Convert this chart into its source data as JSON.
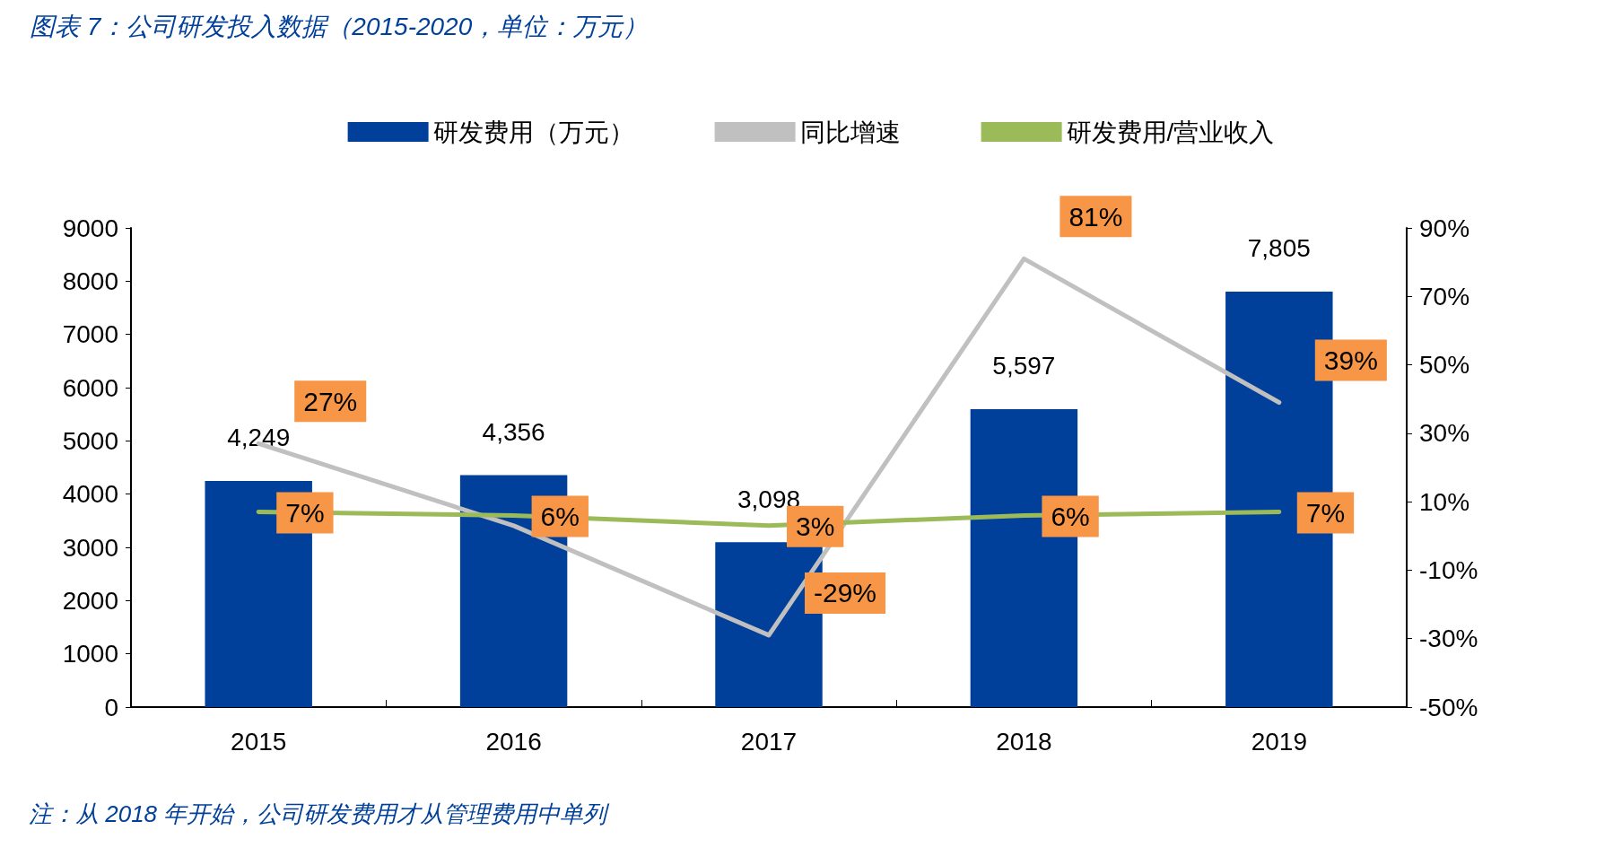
{
  "chart_data": {
    "type": "bar",
    "title": "图表 7：公司研发投入数据（2015-2020，单位：万元）",
    "annotations": [
      "注：从 2018 年开始，公司研发费用才从管理费用中单列"
    ],
    "categories": [
      "2015",
      "2016",
      "2017",
      "2018",
      "2019"
    ],
    "series": [
      {
        "name": "研发费用（万元）",
        "color": "#00409a",
        "values": [
          4249,
          4356,
          3098,
          5597,
          7805
        ],
        "value_labels": [
          "4,249",
          "4,356",
          "3,098",
          "5,597",
          "7,805"
        ]
      },
      {
        "name": "同比增速",
        "type": "line",
        "axis": "y2",
        "color": "#c0c0c0",
        "values": [
          27,
          3,
          -29,
          81,
          39
        ],
        "value_labels": [
          "27%",
          null,
          "-29%",
          "81%",
          "39%"
        ]
      },
      {
        "name": "研发费用/营业收入",
        "type": "line",
        "axis": "y2",
        "color": "#9bbb59",
        "values": [
          7,
          6,
          3,
          6,
          7
        ],
        "value_labels": [
          "7%",
          "6%",
          "3%",
          "6%",
          "7%"
        ]
      }
    ],
    "ylim": [
      0,
      9000
    ],
    "yticks": [
      0,
      1000,
      2000,
      3000,
      4000,
      5000,
      6000,
      7000,
      8000,
      9000
    ],
    "y2lim": [
      -50,
      90
    ],
    "y2ticks": [
      {
        "value": -50,
        "label": "-50%"
      },
      {
        "value": -30,
        "label": "-30%"
      },
      {
        "value": -10,
        "label": "-10%"
      },
      {
        "value": 10,
        "label": "10%"
      },
      {
        "value": 30,
        "label": "30%"
      },
      {
        "value": 50,
        "label": "50%"
      },
      {
        "value": 70,
        "label": "70%"
      },
      {
        "value": 90,
        "label": "90%"
      }
    ],
    "legend": "top",
    "grid": false,
    "marker": "none",
    "line_style": "solid"
  }
}
